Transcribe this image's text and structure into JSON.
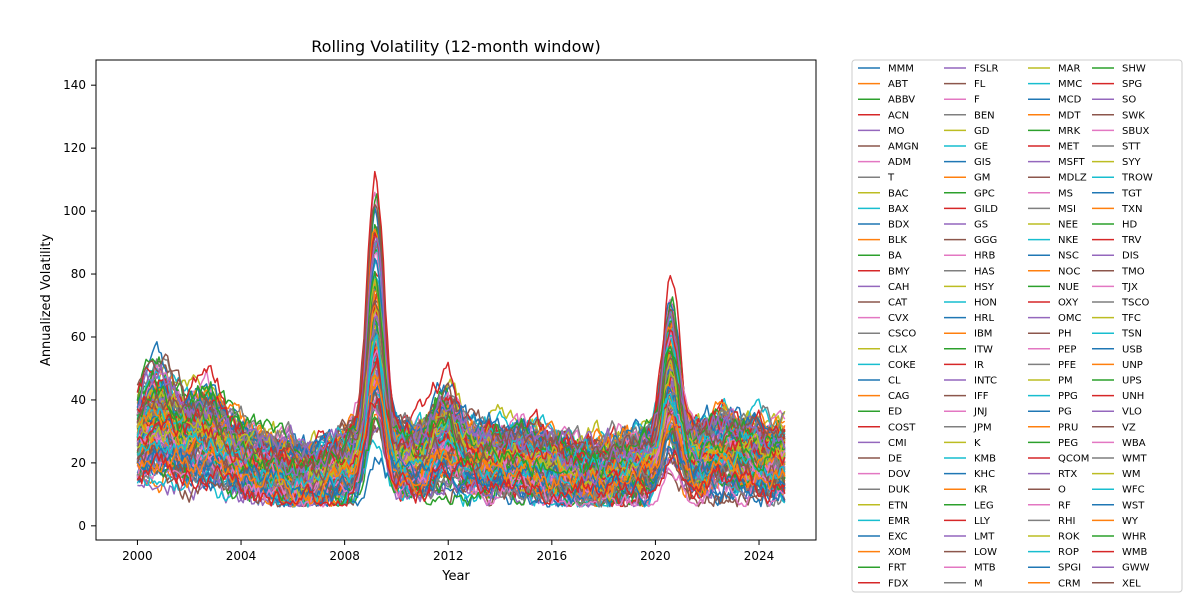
{
  "chart_data": {
    "type": "line",
    "title": "Rolling Volatility (12-month window)",
    "xlabel": "Year",
    "ylabel": "Annualized Volatility",
    "xlim": [
      1998.4,
      2026.2
    ],
    "ylim": [
      -4.5,
      148
    ],
    "xticks": [
      2000,
      2004,
      2008,
      2012,
      2016,
      2020,
      2024
    ],
    "xtick_labels": [
      "2000",
      "2004",
      "2008",
      "2012",
      "2016",
      "2020",
      "2024"
    ],
    "yticks": [
      0,
      20,
      40,
      60,
      80,
      100,
      120,
      140
    ],
    "ytick_labels": [
      "0",
      "20",
      "40",
      "60",
      "80",
      "100",
      "120",
      "140"
    ],
    "grid": false,
    "legend_position": "outside-right",
    "legend_columns": 4,
    "palette": [
      "#1f77b4",
      "#ff7f0e",
      "#2ca02c",
      "#d62728",
      "#9467bd",
      "#8c564b",
      "#e377c2",
      "#7f7f7f",
      "#bcbd22",
      "#17becf"
    ],
    "tickers": [
      "MMM",
      "ABT",
      "ABBV",
      "ACN",
      "MO",
      "AMGN",
      "ADM",
      "T",
      "BAC",
      "BAX",
      "BDX",
      "BLK",
      "BA",
      "BMY",
      "CAH",
      "CAT",
      "CVX",
      "CSCO",
      "CLX",
      "COKE",
      "CL",
      "CAG",
      "ED",
      "COST",
      "CMI",
      "DE",
      "DOV",
      "DUK",
      "ETN",
      "EMR",
      "EXC",
      "XOM",
      "FRT",
      "FDX",
      "FSLR",
      "FL",
      "F",
      "BEN",
      "GD",
      "GE",
      "GIS",
      "GM",
      "GPC",
      "GILD",
      "GS",
      "GGG",
      "HRB",
      "HAS",
      "HSY",
      "HON",
      "HRL",
      "IBM",
      "ITW",
      "IR",
      "INTC",
      "IFF",
      "JNJ",
      "JPM",
      "K",
      "KMB",
      "KHC",
      "KR",
      "LEG",
      "LLY",
      "LMT",
      "LOW",
      "MTB",
      "M",
      "MAR",
      "MMC",
      "MCD",
      "MDT",
      "MRK",
      "MET",
      "MSFT",
      "MDLZ",
      "MS",
      "MSI",
      "NEE",
      "NKE",
      "NSC",
      "NOC",
      "NUE",
      "OXY",
      "OMC",
      "PH",
      "PEP",
      "PFE",
      "PM",
      "PPG",
      "PG",
      "PRU",
      "PEG",
      "QCOM",
      "RTX",
      "O",
      "RF",
      "RHI",
      "ROK",
      "ROP",
      "SPGI",
      "CRM",
      "SHW",
      "SPG",
      "SO",
      "SWK",
      "SBUX",
      "STT",
      "SYY",
      "TROW",
      "TGT",
      "TXN",
      "HD",
      "TRV",
      "DIS",
      "TMO",
      "TJX",
      "TSCO",
      "TFC",
      "TSN",
      "USB",
      "UNP",
      "UPS",
      "UNH",
      "VLO",
      "VZ",
      "WBA",
      "WMT",
      "WM",
      "WFC",
      "WST",
      "WY",
      "WHR",
      "WMB",
      "GWW",
      "XEL"
    ],
    "series_data": {
      "x_start": 2000.0,
      "x_step": 0.0833,
      "count": 301,
      "note_series": []
    }
  }
}
